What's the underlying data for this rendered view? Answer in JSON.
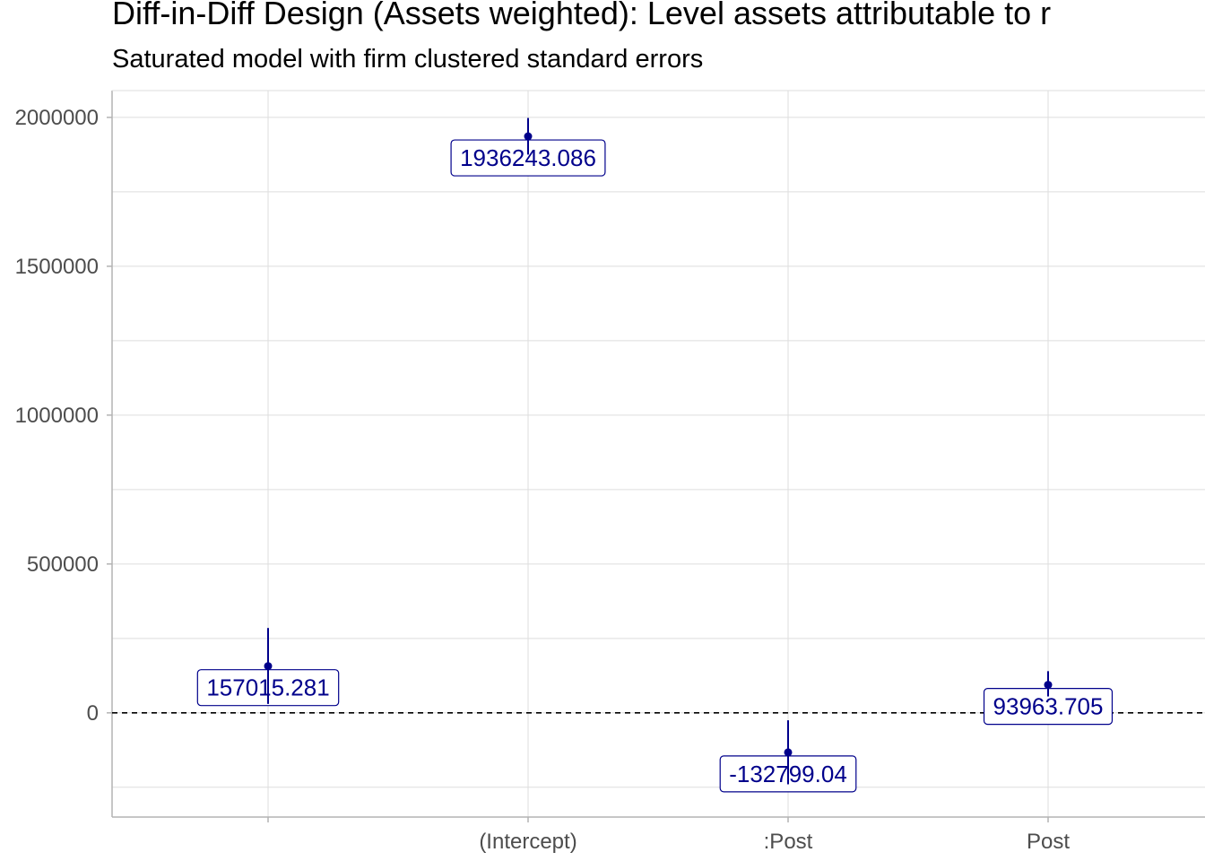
{
  "colors": {
    "accent": "#00008b",
    "grid": "#dedede",
    "axis": "#b3b3b3",
    "text": "#4d4d4d"
  },
  "chart_data": {
    "type": "scatter",
    "title": "Diff-in-Diff Design (Assets weighted): Level assets attributable to r",
    "subtitle": "Saturated model with firm clustered standard errors",
    "xlabel": "",
    "ylabel": "",
    "categories": [
      "",
      "(Intercept)",
      ":Post",
      "Post"
    ],
    "ylim": [
      -350000,
      2090000
    ],
    "yticks": [
      0,
      500000,
      1000000,
      1500000,
      2000000
    ],
    "ytick_labels": [
      "0",
      "500000",
      "1000000",
      "1500000",
      "2000000"
    ],
    "reference_line": {
      "y": 0,
      "style": "dashed"
    },
    "grid": true,
    "points": [
      {
        "category": "",
        "estimate": 157015.281,
        "ci_low": 30000,
        "ci_high": 285000,
        "label": "157015.281"
      },
      {
        "category": "(Intercept)",
        "estimate": 1936243.086,
        "ci_low": 1875000,
        "ci_high": 1998000,
        "label": "1936243.086"
      },
      {
        "category": ":Post",
        "estimate": -132799.04,
        "ci_low": -240000,
        "ci_high": -25000,
        "label": "-132799.04"
      },
      {
        "category": "Post",
        "estimate": 93963.705,
        "ci_low": 55000,
        "ci_high": 140000,
        "label": "93963.705"
      }
    ]
  }
}
